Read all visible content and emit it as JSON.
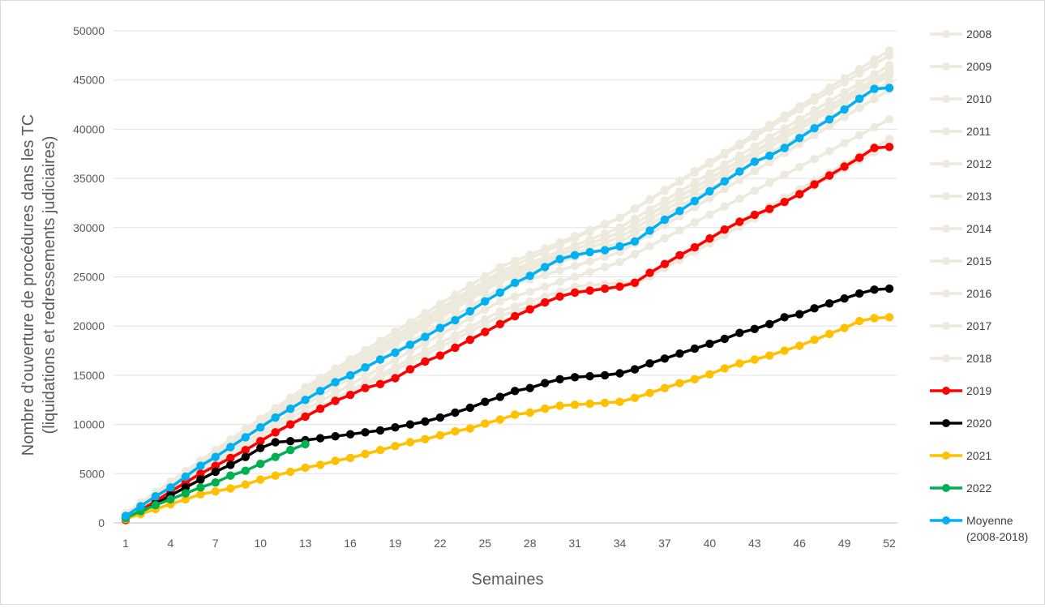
{
  "chart_data": {
    "type": "line",
    "xlabel": "Semaines",
    "ylabel_line1": "Nombre d'ouverture de procédures dans les TC",
    "ylabel_line2": "(liquidations et redressements judiciaires)",
    "ylim": [
      0,
      50000
    ],
    "y_ticks": [
      0,
      5000,
      10000,
      15000,
      20000,
      25000,
      30000,
      35000,
      40000,
      45000,
      50000
    ],
    "x_ticks": [
      1,
      4,
      7,
      10,
      13,
      16,
      19,
      22,
      25,
      28,
      31,
      34,
      37,
      40,
      43,
      46,
      49,
      52
    ],
    "xlim": [
      1,
      52
    ],
    "grid": "horizontal",
    "legend_position": "right",
    "series": [
      {
        "name": "2008",
        "color": "#ede9dc",
        "anchors": [
          [
            1,
            900
          ],
          [
            13,
            13500
          ],
          [
            26,
            25500
          ],
          [
            34,
            31000
          ],
          [
            52,
            48000
          ]
        ]
      },
      {
        "name": "2009",
        "color": "#ede9dc",
        "anchors": [
          [
            1,
            1000
          ],
          [
            13,
            13800
          ],
          [
            26,
            26000
          ],
          [
            34,
            31000
          ],
          [
            52,
            47500
          ]
        ]
      },
      {
        "name": "2010",
        "color": "#ede9dc",
        "anchors": [
          [
            1,
            800
          ],
          [
            13,
            13000
          ],
          [
            26,
            25000
          ],
          [
            34,
            29500
          ],
          [
            52,
            46000
          ]
        ]
      },
      {
        "name": "2011",
        "color": "#ede9dc",
        "anchors": [
          [
            1,
            800
          ],
          [
            13,
            12800
          ],
          [
            26,
            24800
          ],
          [
            34,
            29000
          ],
          [
            52,
            45500
          ]
        ]
      },
      {
        "name": "2012",
        "color": "#ede9dc",
        "anchors": [
          [
            1,
            900
          ],
          [
            13,
            13200
          ],
          [
            26,
            25200
          ],
          [
            34,
            30000
          ],
          [
            52,
            46500
          ]
        ]
      },
      {
        "name": "2013",
        "color": "#ede9dc",
        "anchors": [
          [
            1,
            900
          ],
          [
            13,
            13000
          ],
          [
            26,
            25000
          ],
          [
            34,
            29500
          ],
          [
            52,
            45800
          ]
        ]
      },
      {
        "name": "2014",
        "color": "#ede9dc",
        "anchors": [
          [
            1,
            800
          ],
          [
            13,
            12600
          ],
          [
            26,
            24500
          ],
          [
            34,
            28500
          ],
          [
            52,
            44800
          ]
        ]
      },
      {
        "name": "2015",
        "color": "#ede9dc",
        "anchors": [
          [
            1,
            700
          ],
          [
            13,
            12000
          ],
          [
            26,
            23800
          ],
          [
            34,
            27500
          ],
          [
            52,
            44000
          ]
        ]
      },
      {
        "name": "2016",
        "color": "#ede9dc",
        "anchors": [
          [
            1,
            700
          ],
          [
            13,
            11500
          ],
          [
            26,
            22500
          ],
          [
            34,
            26500
          ],
          [
            52,
            41000
          ]
        ]
      },
      {
        "name": "2017",
        "color": "#ede9dc",
        "anchors": [
          [
            1,
            600
          ],
          [
            13,
            11000
          ],
          [
            26,
            21500
          ],
          [
            31,
            24000
          ],
          [
            35,
            24500
          ],
          [
            52,
            39000
          ]
        ]
      },
      {
        "name": "2018",
        "color": "#ede9dc",
        "anchors": [
          [
            1,
            600
          ],
          [
            13,
            10800
          ],
          [
            26,
            21000
          ],
          [
            31,
            23500
          ],
          [
            35,
            24200
          ],
          [
            52,
            38500
          ]
        ]
      },
      {
        "name": "2019",
        "color": "#ff0000",
        "values": [
          300,
          1300,
          2200,
          3200,
          4100,
          5000,
          5800,
          6600,
          7400,
          8300,
          9200,
          10000,
          10800,
          11600,
          12400,
          13000,
          13700,
          14100,
          14700,
          15600,
          16400,
          17000,
          17800,
          18600,
          19400,
          20200,
          21000,
          21700,
          22400,
          23000,
          23400,
          23600,
          23800,
          24000,
          24400,
          25400,
          26300,
          27200,
          28000,
          28900,
          29800,
          30600,
          31300,
          31900,
          32600,
          33400,
          34400,
          35300,
          36200,
          37100,
          38100,
          38200
        ]
      },
      {
        "name": "2020",
        "color": "#000000",
        "values": [
          500,
          1100,
          1900,
          2800,
          3600,
          4400,
          5200,
          5900,
          6700,
          7600,
          8200,
          8300,
          8400,
          8600,
          8800,
          9000,
          9200,
          9400,
          9700,
          10000,
          10300,
          10700,
          11200,
          11700,
          12300,
          12800,
          13400,
          13700,
          14200,
          14600,
          14800,
          14900,
          15000,
          15200,
          15600,
          16200,
          16700,
          17200,
          17700,
          18200,
          18700,
          19300,
          19700,
          20200,
          20900,
          21200,
          21800,
          22300,
          22800,
          23300,
          23700,
          23800
        ]
      },
      {
        "name": "2021",
        "color": "#ffc000",
        "values": [
          400,
          900,
          1400,
          1900,
          2400,
          2900,
          3200,
          3500,
          3900,
          4400,
          4800,
          5200,
          5600,
          5900,
          6300,
          6600,
          7000,
          7400,
          7800,
          8200,
          8500,
          8900,
          9300,
          9600,
          10100,
          10500,
          11000,
          11200,
          11600,
          11900,
          12000,
          12100,
          12200,
          12300,
          12700,
          13200,
          13700,
          14200,
          14600,
          15100,
          15700,
          16200,
          16600,
          17000,
          17500,
          18000,
          18600,
          19200,
          19800,
          20500,
          20800,
          20900
        ]
      },
      {
        "name": "2022",
        "color": "#00b050",
        "values": [
          500,
          1200,
          1800,
          2400,
          3000,
          3600,
          4100,
          4800,
          5300,
          6000,
          6700,
          7400,
          8000
        ]
      },
      {
        "name": "Moyenne",
        "name_line2": "(2008-2018)",
        "color": "#00b0f0",
        "values": [
          700,
          1700,
          2700,
          3600,
          4700,
          5800,
          6700,
          7700,
          8700,
          9700,
          10700,
          11600,
          12500,
          13400,
          14300,
          15000,
          15800,
          16600,
          17300,
          18100,
          18900,
          19800,
          20600,
          21500,
          22500,
          23400,
          24400,
          25100,
          26000,
          26800,
          27200,
          27500,
          27700,
          28100,
          28600,
          29700,
          30800,
          31700,
          32700,
          33700,
          34700,
          35700,
          36700,
          37300,
          38100,
          39100,
          40100,
          41000,
          42000,
          43100,
          44100,
          44200
        ]
      }
    ]
  }
}
